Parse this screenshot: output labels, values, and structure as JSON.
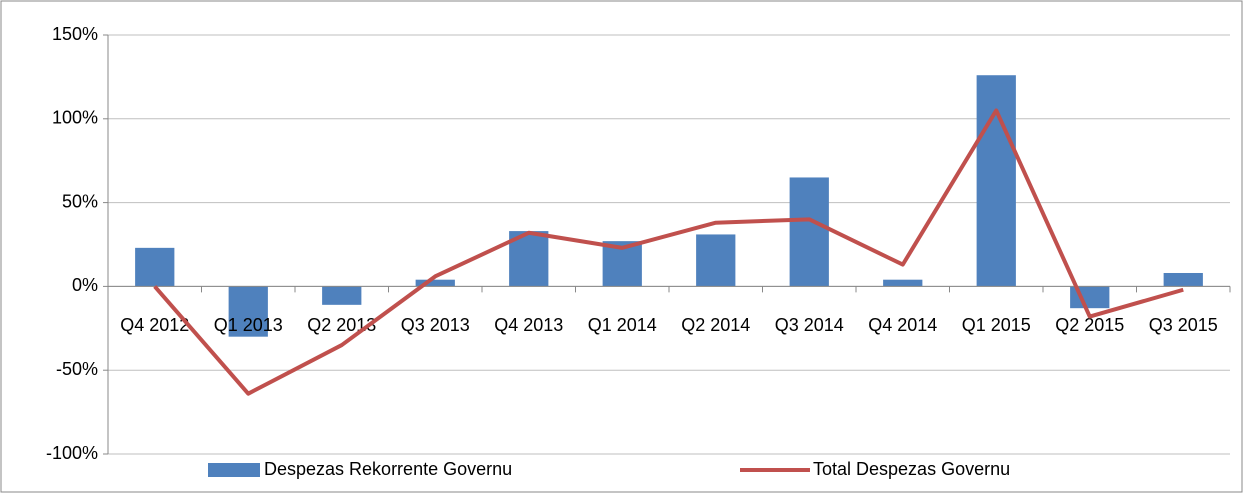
{
  "chart_data": {
    "type": "bar_line",
    "categories": [
      "Q4 2012",
      "Q1 2013",
      "Q2 2013",
      "Q3 2013",
      "Q4 2013",
      "Q1 2014",
      "Q2 2014",
      "Q3 2014",
      "Q4 2014",
      "Q1 2015",
      "Q2 2015",
      "Q3 2015"
    ],
    "series": [
      {
        "name": "Despezas Rekorrente Governu",
        "type": "bar",
        "color": "#4f81bd",
        "values": [
          23,
          -30,
          -11,
          4,
          33,
          27,
          31,
          65,
          4,
          126,
          -13,
          8
        ]
      },
      {
        "name": "Total Despezas Governu",
        "type": "line",
        "color": "#c0504d",
        "values": [
          0,
          -64,
          -35,
          6,
          32,
          23,
          38,
          40,
          13,
          105,
          -18,
          -2
        ]
      }
    ],
    "ylim": [
      -100,
      150
    ],
    "yticks": [
      {
        "value": -100,
        "label": "-100%"
      },
      {
        "value": -50,
        "label": "-50%"
      },
      {
        "value": 0,
        "label": "0%"
      },
      {
        "value": 50,
        "label": "50%"
      },
      {
        "value": 100,
        "label": "100%"
      },
      {
        "value": 150,
        "label": "150%"
      }
    ],
    "grid": true,
    "legend": "bottom"
  }
}
